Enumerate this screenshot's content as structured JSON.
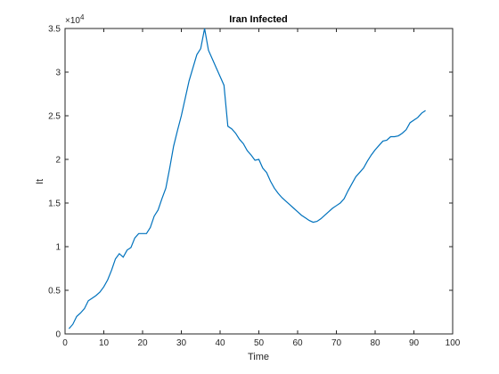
{
  "chart_data": {
    "type": "line",
    "title": "Iran Infected",
    "xlabel": "Time",
    "ylabel": "It",
    "xlim": [
      0,
      100
    ],
    "ylim": [
      0,
      35000
    ],
    "x_ticks": [
      0,
      10,
      20,
      30,
      40,
      50,
      60,
      70,
      80,
      90,
      100
    ],
    "y_ticks": [
      0,
      5000,
      10000,
      15000,
      20000,
      25000,
      30000,
      35000
    ],
    "x_tick_labels": [
      "0",
      "10",
      "20",
      "30",
      "40",
      "50",
      "60",
      "70",
      "80",
      "90",
      "100"
    ],
    "y_tick_labels": [
      "0",
      "0.5",
      "1",
      "1.5",
      "2",
      "2.5",
      "3",
      "3.5"
    ],
    "y_exponent_base": "×10",
    "y_exponent_power": "4",
    "grid": false,
    "colors": {
      "line": "#0072BD",
      "axis": "#262626",
      "background": "#ffffff"
    },
    "series": [
      {
        "x": [
          1,
          2,
          3,
          4,
          5,
          6,
          7,
          8,
          9,
          10,
          11,
          12,
          13,
          14,
          15,
          16,
          17,
          18,
          19,
          20,
          21,
          22,
          23,
          24,
          25,
          26,
          27,
          28,
          29,
          30,
          31,
          32,
          33,
          34,
          35,
          36,
          37,
          38,
          39,
          40,
          41,
          42,
          43,
          44,
          45,
          46,
          47,
          48,
          49,
          50,
          51,
          52,
          53,
          54,
          55,
          56,
          57,
          58,
          59,
          60,
          61,
          62,
          63,
          64,
          65,
          66,
          67,
          68,
          69,
          70,
          71,
          72,
          73,
          74,
          75,
          76,
          77,
          78,
          79,
          80,
          81,
          82,
          83,
          84,
          85,
          86,
          87,
          88,
          89,
          90,
          91,
          92,
          93
        ],
        "y": [
          600,
          1100,
          2000,
          2400,
          2900,
          3800,
          4100,
          4400,
          4800,
          5400,
          6200,
          7300,
          8600,
          9200,
          8800,
          9600,
          9900,
          11000,
          11500,
          11500,
          11500,
          12200,
          13500,
          14200,
          15500,
          16700,
          19000,
          21500,
          23300,
          25000,
          27000,
          29000,
          30500,
          32000,
          32700,
          35000,
          32500,
          31500,
          30500,
          29500,
          28500,
          23800,
          23500,
          23000,
          22300,
          21800,
          21000,
          20500,
          19900,
          20000,
          19000,
          18500,
          17500,
          16700,
          16100,
          15600,
          15200,
          14800,
          14400,
          14000,
          13600,
          13300,
          13000,
          12800,
          12900,
          13200,
          13600,
          14000,
          14400,
          14700,
          15000,
          15500,
          16400,
          17200,
          18000,
          18500,
          19000,
          19800,
          20500,
          21100,
          21600,
          22100,
          22200,
          22600,
          22600,
          22700,
          23000,
          23400,
          24200,
          24500,
          24800,
          25300,
          25600
        ]
      }
    ]
  }
}
